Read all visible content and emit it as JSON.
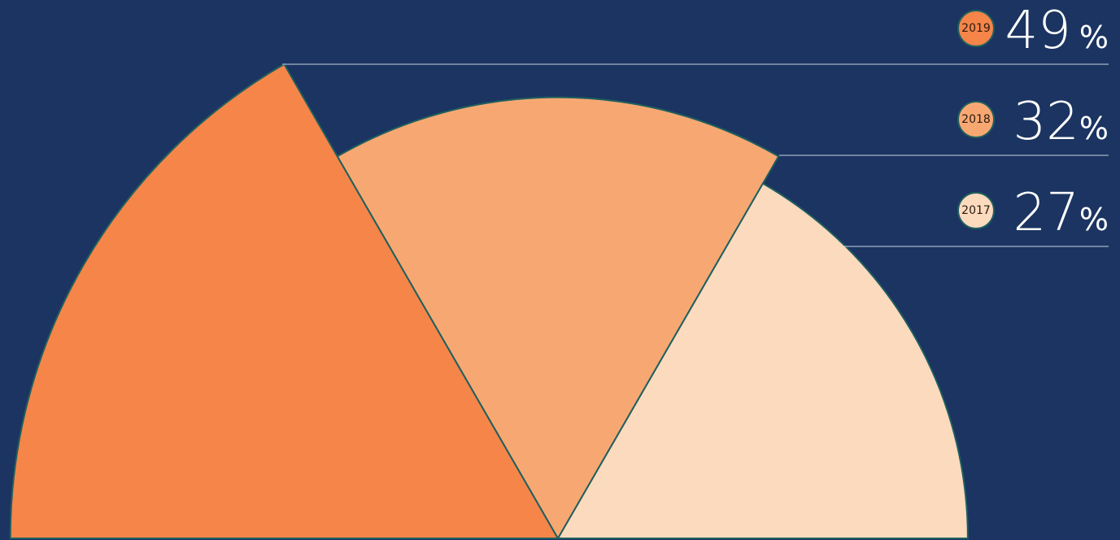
{
  "chart_data": {
    "type": "rose",
    "categories": [
      "2019",
      "2018",
      "2017"
    ],
    "values": [
      49,
      32,
      27
    ],
    "value_unit": "%",
    "colors": [
      "#f58549",
      "#f7a872",
      "#fcdabe"
    ]
  }
}
